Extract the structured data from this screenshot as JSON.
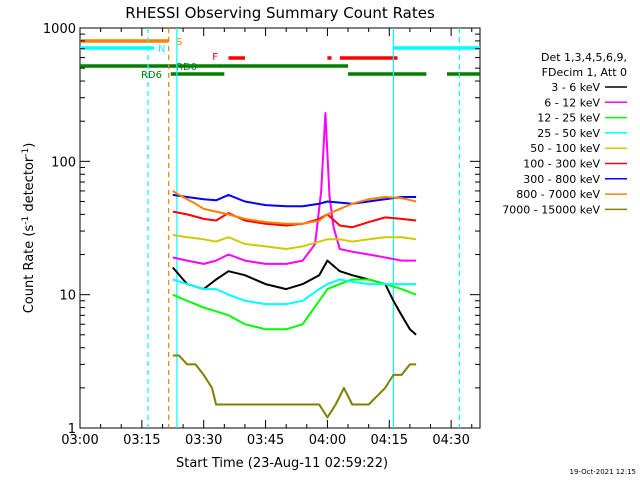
{
  "chart_data": {
    "type": "line",
    "title": "RHESSI Observing Summary Count Rates",
    "ylabel": "Count Rate (s",
    "ylabel_sup": "-1",
    "ylabel_tail": " detector",
    "ylabel_sup2": "-1",
    "ylabel_end": ")",
    "xlabel": "Start Time (23-Aug-11 02:59:22)",
    "x_unit": "minutes after 03:00",
    "xlim": [
      0,
      97
    ],
    "ylim": [
      1,
      1000
    ],
    "yscale": "log",
    "x_ticks": [
      {
        "label": "03:00",
        "value": 0
      },
      {
        "label": "03:15",
        "value": 15
      },
      {
        "label": "03:30",
        "value": 30
      },
      {
        "label": "03:45",
        "value": 45
      },
      {
        "label": "04:00",
        "value": 60
      },
      {
        "label": "04:15",
        "value": 75
      },
      {
        "label": "04:30",
        "value": 90
      }
    ],
    "y_ticks": [
      {
        "label": "1",
        "value": 1
      },
      {
        "label": "10",
        "value": 10
      },
      {
        "label": "100",
        "value": 100
      },
      {
        "label": "1000",
        "value": 1000
      }
    ],
    "legend_title": "Det 1,3,4,5,6,9,",
    "legend_title2": "FDecim 1, Att 0",
    "timestamp": "19-Oct-2021 12:15",
    "series": [
      {
        "name": "3 - 6 keV",
        "color": "#000000",
        "x": [
          22.5,
          26,
          30,
          33,
          36,
          40,
          45,
          50,
          54,
          58,
          60,
          63,
          66,
          70,
          74,
          76,
          78,
          80,
          81.5
        ],
        "y": [
          16,
          12,
          11,
          13,
          15,
          14,
          12,
          11,
          12,
          14,
          18,
          15,
          14,
          13,
          12,
          9,
          7,
          5.5,
          5
        ]
      },
      {
        "name": "6 - 12 keV",
        "color": "#ff00ff",
        "x": [
          22.5,
          26,
          30,
          33,
          36,
          40,
          45,
          50,
          54,
          57,
          58.5,
          59.5,
          60.5,
          61.5,
          63,
          66,
          70,
          74,
          78,
          81.5
        ],
        "y": [
          19,
          18,
          17,
          18,
          20,
          18,
          17,
          17,
          18,
          24,
          60,
          230,
          55,
          32,
          22,
          21,
          20,
          19,
          18,
          18
        ]
      },
      {
        "name": "12 - 25 keV",
        "color": "#00ff00",
        "x": [
          22.5,
          26,
          30,
          33,
          36,
          40,
          45,
          50,
          54,
          58,
          60,
          63,
          66,
          70,
          74,
          78,
          81.5
        ],
        "y": [
          10,
          9,
          8,
          7.5,
          7,
          6,
          5.5,
          5.5,
          6,
          9,
          11,
          12,
          13,
          13,
          12,
          11,
          10
        ]
      },
      {
        "name": "25 - 50 keV",
        "color": "#00ffff",
        "x": [
          22.5,
          26,
          30,
          33,
          36,
          40,
          45,
          50,
          54,
          58,
          60,
          63,
          66,
          70,
          74,
          78,
          81.5
        ],
        "y": [
          13,
          12,
          11,
          11,
          10,
          9,
          8.5,
          8.5,
          9,
          11,
          12,
          13,
          12.5,
          12,
          12,
          12,
          12
        ]
      },
      {
        "name": "50 - 100 keV",
        "color": "#cccc00",
        "x": [
          22.5,
          26,
          30,
          33,
          36,
          40,
          45,
          50,
          54,
          58,
          60,
          63,
          66,
          70,
          74,
          78,
          81.5
        ],
        "y": [
          28,
          27,
          26,
          25,
          27,
          24,
          23,
          22,
          23,
          25,
          26,
          26,
          25,
          26,
          27,
          27,
          26
        ]
      },
      {
        "name": "100 - 300 keV",
        "color": "#ff0000",
        "x": [
          22.5,
          26,
          30,
          33,
          36,
          40,
          45,
          50,
          54,
          58,
          60,
          63,
          66,
          70,
          74,
          78,
          81.5
        ],
        "y": [
          42,
          40,
          37,
          36,
          41,
          36,
          34,
          33,
          34,
          37,
          40,
          33,
          32,
          35,
          38,
          37,
          36
        ]
      },
      {
        "name": "300 - 800 keV",
        "color": "#0000ff",
        "x": [
          22.5,
          26,
          30,
          33,
          36,
          40,
          45,
          50,
          54,
          58,
          60,
          63,
          66,
          70,
          74,
          78,
          81.5
        ],
        "y": [
          56,
          54,
          52,
          51,
          56,
          50,
          47,
          46,
          46,
          48,
          50,
          49,
          48,
          50,
          52,
          54,
          54
        ]
      },
      {
        "name": "800 - 7000 keV",
        "color": "#ff8000",
        "x": [
          22.5,
          24,
          26,
          28,
          30,
          33,
          36,
          40,
          45,
          50,
          54,
          58,
          60,
          63,
          66,
          70,
          74,
          78,
          81.5
        ],
        "y": [
          60,
          56,
          52,
          48,
          44,
          42,
          40,
          37,
          35,
          34,
          34,
          36,
          40,
          44,
          48,
          52,
          54,
          53,
          50
        ]
      },
      {
        "name": "7000 - 15000 keV",
        "color": "#808000",
        "x": [
          22.5,
          24,
          26,
          28,
          30,
          32,
          33,
          36,
          40,
          45,
          50,
          54,
          58,
          60,
          62,
          64,
          66,
          70,
          74,
          76,
          78,
          80,
          81.5
        ],
        "y": [
          3.5,
          3.5,
          3,
          3,
          2.5,
          2,
          1.5,
          1.5,
          1.5,
          1.5,
          1.5,
          1.5,
          1.5,
          1.2,
          1.5,
          2,
          1.5,
          1.5,
          2,
          2.5,
          2.5,
          3,
          3
        ]
      }
    ],
    "flags": [
      {
        "label": "S",
        "color": "#ff8000",
        "segments": [
          [
            0,
            21.5
          ]
        ]
      },
      {
        "label": "N",
        "color": "#00ffff",
        "segments": [
          [
            0,
            18
          ],
          [
            76,
            97
          ]
        ]
      },
      {
        "label": "F",
        "color": "#ff0000",
        "segments": [
          [
            36,
            40
          ],
          [
            60,
            61
          ],
          [
            63,
            77
          ]
        ]
      },
      {
        "label": "RD0",
        "color": "#008000",
        "segments": [
          [
            0,
            33
          ],
          [
            33,
            65
          ]
        ]
      },
      {
        "label": "RD6",
        "color": "#008000",
        "segments": [
          [
            22,
            35
          ],
          [
            65,
            84
          ],
          [
            89,
            97
          ]
        ]
      }
    ],
    "vlines": [
      {
        "x": 16.5,
        "color": "#00ffff",
        "dashed": true
      },
      {
        "x": 21.5,
        "color": "#ff8000",
        "dashed": true
      },
      {
        "x": 23.5,
        "color": "#00ffff",
        "dashed": false
      },
      {
        "x": 76,
        "color": "#00ffff",
        "dashed": false
      },
      {
        "x": 92,
        "color": "#00ffff",
        "dashed": true
      }
    ],
    "grid": false,
    "legend_position": "right"
  }
}
